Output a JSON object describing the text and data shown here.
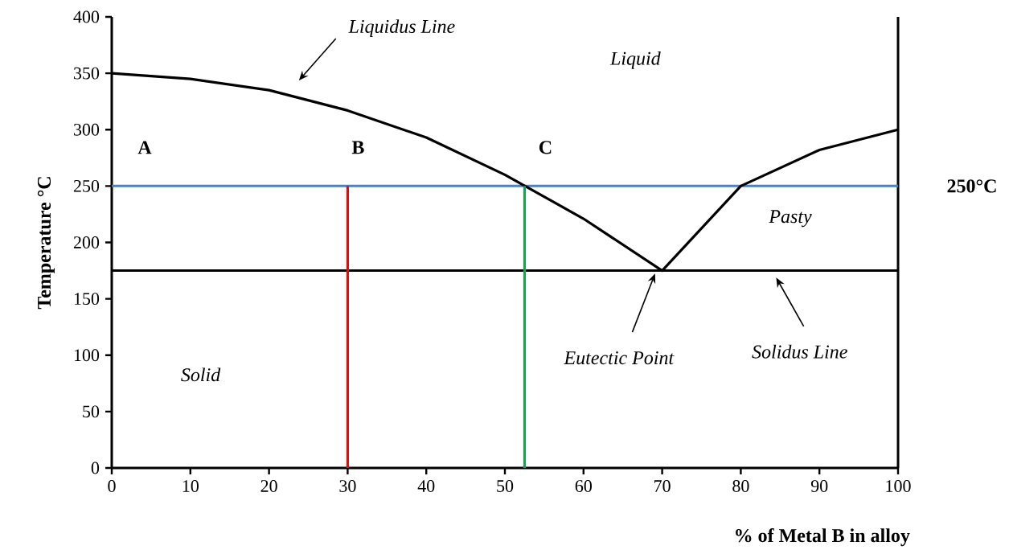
{
  "chart_data": {
    "type": "line",
    "xlabel": "% of Metal B in alloy",
    "ylabel": "Temperature °C",
    "xlim": [
      0,
      100
    ],
    "ylim": [
      0,
      400
    ],
    "xticks": [
      0,
      10,
      20,
      30,
      40,
      50,
      60,
      70,
      80,
      90,
      100
    ],
    "yticks": [
      0,
      50,
      100,
      150,
      200,
      250,
      300,
      350,
      400
    ],
    "grid": false,
    "marker": "none",
    "series": [
      {
        "color": "#000000",
        "x": [
          0,
          10,
          20,
          30,
          40,
          50,
          60,
          70,
          80,
          90,
          100
        ],
        "values": [
          350,
          345,
          335,
          317,
          293,
          260,
          221,
          175,
          250,
          282,
          300
        ]
      },
      {
        "color": "#ff0000",
        "x": [
          30,
          30
        ],
        "values": [
          0,
          250
        ]
      },
      {
        "color": "#00b050",
        "x": [
          52.5,
          52.5
        ],
        "values": [
          0,
          250
        ]
      }
    ],
    "ref_lines": [
      {
        "axis": "y",
        "value": 250,
        "label": "250°C",
        "color": "#4f81bd"
      },
      {
        "axis": "y",
        "value": 175,
        "color": "#000000"
      }
    ],
    "annotations": [
      "Liquidus Line",
      "Liquid",
      {
        "text": "A",
        "x": 0,
        "y": 250
      },
      {
        "text": "B",
        "x": 30,
        "y": 250
      },
      {
        "text": "C",
        "x": 52.5,
        "y": 250
      },
      "Pasty",
      "Eutectic Point",
      "Solidus Line",
      "Solid"
    ]
  }
}
